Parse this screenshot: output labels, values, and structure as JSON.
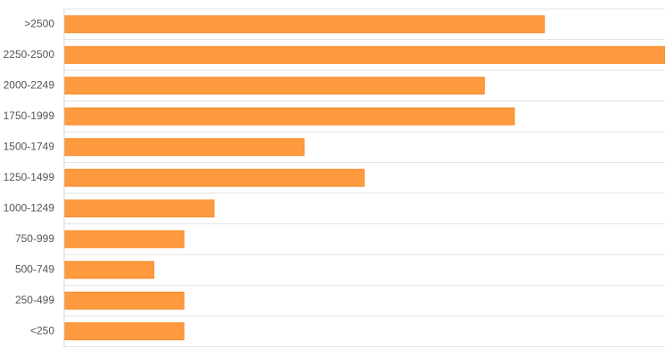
{
  "chart_data": {
    "type": "bar",
    "orientation": "horizontal",
    "categories": [
      ">2500",
      "2250-2500",
      "2000-2249",
      "1750-1999",
      "1500-1749",
      "1250-1499",
      "1000-1249",
      "750-999",
      "500-749",
      "250-499",
      "<250"
    ],
    "values": [
      16,
      20,
      14,
      15,
      8,
      10,
      5,
      4,
      3,
      4,
      4
    ],
    "xlim": [
      0,
      20
    ],
    "grid": true,
    "legend": "none",
    "title": "",
    "xlabel": "",
    "ylabel": "",
    "colors": {
      "bar_fill": "#FF9A3E",
      "bar_stroke": "#F58A2A",
      "grid": "#e3e3e3",
      "axis": "#d6d6d6",
      "label": "#555555"
    }
  }
}
